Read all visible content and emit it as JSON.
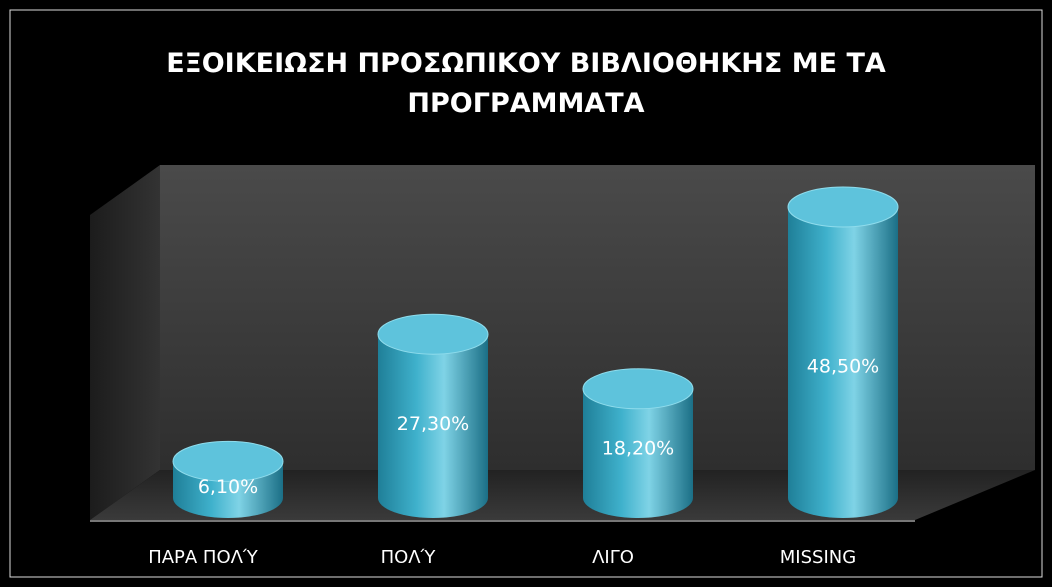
{
  "chart_data": {
    "type": "bar",
    "title": "ΕΞΟΙΚΕΙΩΣΗ ΠΡΟΣΩΠΙΚΟΥ ΒΙΒΛΙΟΘΗΚΗΣ ΜΕ ΤΑ ΠΡΟΓΡΑΜΜΑΤΑ",
    "categories": [
      "ΠΑΡΑ ΠΟΛΎ",
      "ΠΟΛΎ",
      "ΛΙΓΟ",
      "MISSING"
    ],
    "values": [
      6.1,
      27.3,
      18.2,
      48.5
    ],
    "value_labels": [
      "6,10%",
      "27,30%",
      "18,20%",
      "48,50%"
    ],
    "color": "#3fb1cc"
  }
}
